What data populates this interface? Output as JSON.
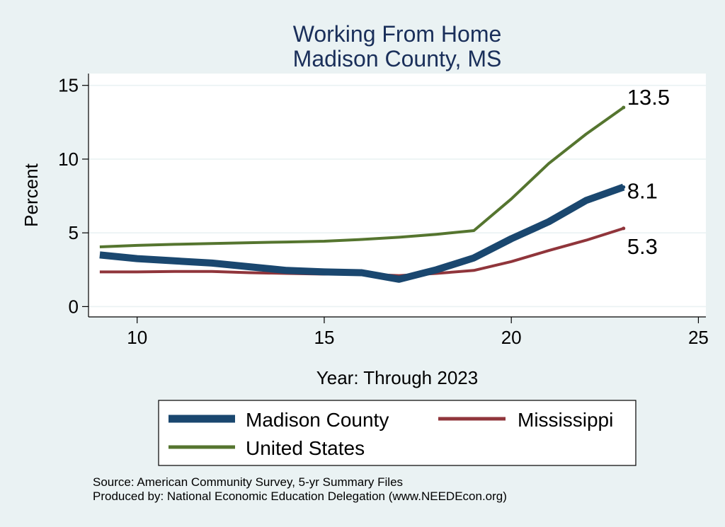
{
  "chart_data": {
    "type": "line",
    "title": [
      "Working From Home",
      "Madison County, MS"
    ],
    "xlabel": "Year: Through 2023",
    "ylabel": "Percent",
    "xlim": [
      8.7,
      25.2
    ],
    "ylim": [
      -0.7,
      15.8
    ],
    "xticks": [
      10,
      15,
      20,
      25
    ],
    "yticks": [
      0,
      5,
      10,
      15
    ],
    "grid": "horizontal",
    "series": [
      {
        "name": "Madison County",
        "color": "#1a476f",
        "width": "thick",
        "x": [
          9,
          10,
          11,
          12,
          13,
          14,
          15,
          16,
          17,
          18,
          19,
          20,
          21,
          22,
          23
        ],
        "y": [
          3.5,
          3.25,
          3.1,
          2.95,
          2.7,
          2.45,
          2.35,
          2.3,
          1.85,
          2.5,
          3.3,
          4.6,
          5.75,
          7.2,
          8.1
        ],
        "end_label": "8.1"
      },
      {
        "name": "Mississippi",
        "color": "#90353b",
        "width": "medium",
        "x": [
          9,
          10,
          11,
          12,
          13,
          14,
          15,
          16,
          17,
          18,
          19,
          20,
          21,
          22,
          23
        ],
        "y": [
          2.35,
          2.35,
          2.38,
          2.38,
          2.3,
          2.25,
          2.2,
          2.2,
          2.1,
          2.25,
          2.45,
          3.05,
          3.8,
          4.5,
          5.3
        ],
        "end_label": "5.3"
      },
      {
        "name": "United States",
        "color": "#55752f",
        "width": "medium",
        "x": [
          9,
          10,
          11,
          12,
          13,
          14,
          15,
          16,
          17,
          18,
          19,
          20,
          21,
          22,
          23
        ],
        "y": [
          4.05,
          4.15,
          4.22,
          4.28,
          4.33,
          4.38,
          4.43,
          4.55,
          4.7,
          4.9,
          5.15,
          7.3,
          9.7,
          11.7,
          13.5
        ],
        "end_label": "13.5"
      }
    ],
    "legend": {
      "placement": "bottom",
      "entries": [
        "Madison County",
        "Mississippi",
        "United States"
      ]
    }
  },
  "notes": {
    "source": "Source: American Community Survey, 5-yr Summary Files",
    "producer": "Produced by: National Economic Education Delegation (www.NEEDEcon.org)"
  }
}
